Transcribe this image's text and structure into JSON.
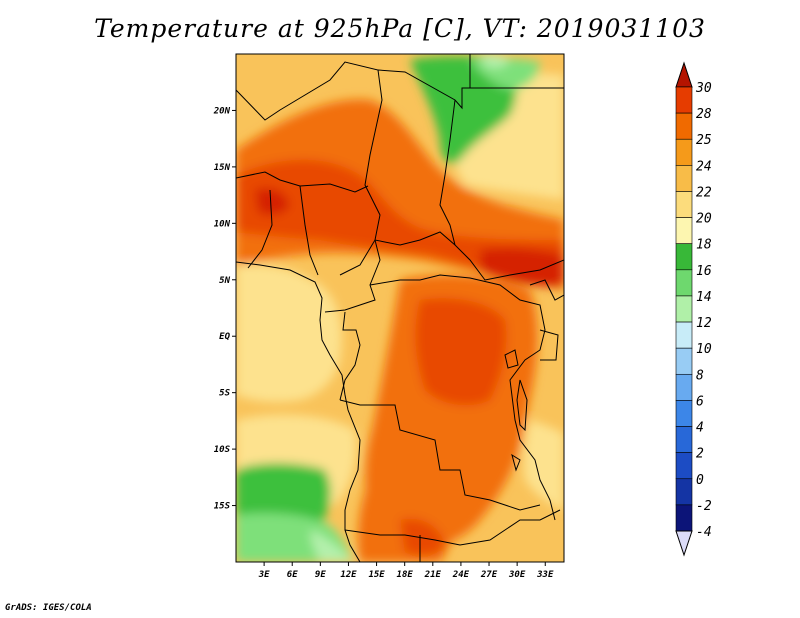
{
  "title": "Temperature at 925hPa [C], VT: 2019031103",
  "footer": "GrADS: IGES/COLA",
  "map": {
    "lon_range": [
      0,
      35
    ],
    "lat_range": [
      -20,
      25
    ],
    "lat_ticks": [
      {
        "value": 20,
        "label": "20N"
      },
      {
        "value": 15,
        "label": "15N"
      },
      {
        "value": 10,
        "label": "10N"
      },
      {
        "value": 5,
        "label": "5N"
      },
      {
        "value": 0,
        "label": "EQ"
      },
      {
        "value": -5,
        "label": "5S"
      },
      {
        "value": -10,
        "label": "10S"
      },
      {
        "value": -15,
        "label": "15S"
      }
    ],
    "lon_ticks": [
      {
        "value": 3,
        "label": "3E"
      },
      {
        "value": 6,
        "label": "6E"
      },
      {
        "value": 9,
        "label": "9E"
      },
      {
        "value": 12,
        "label": "12E"
      },
      {
        "value": 15,
        "label": "15E"
      },
      {
        "value": 18,
        "label": "18E"
      },
      {
        "value": 21,
        "label": "21E"
      },
      {
        "value": 24,
        "label": "24E"
      },
      {
        "value": 27,
        "label": "27E"
      },
      {
        "value": 30,
        "label": "30E"
      },
      {
        "value": 33,
        "label": "33E"
      }
    ]
  },
  "colorbar": {
    "labels": [
      "30",
      "28",
      "25",
      "24",
      "22",
      "20",
      "18",
      "16",
      "14",
      "12",
      "10",
      "8",
      "6",
      "4",
      "2",
      "0",
      "-2",
      "-4"
    ],
    "colors": [
      "#c81e00",
      "#e63c00",
      "#f06a00",
      "#f59a1a",
      "#f8bc48",
      "#fcdc7c",
      "#fdf6b0",
      "#38b838",
      "#6ed86e",
      "#b0f0a8",
      "#c8ecf8",
      "#98ccf4",
      "#68aaf0",
      "#3c86e8",
      "#2868d8",
      "#1c4cc4",
      "#1434a4",
      "#0c1478"
    ],
    "top_arrow_color": "#b41400",
    "bottom_arrow_color": "#dcdcf8"
  },
  "field_colors": {
    "c30": "#d52000",
    "c28": "#e84a00",
    "c25": "#f26f0a",
    "c24": "#f6a232",
    "c22": "#f9c35a",
    "c20": "#fde28e",
    "c18": "#fef6b8",
    "c16": "#3cc03c",
    "c14": "#7ee07a",
    "c12": "#b4f0ac"
  }
}
